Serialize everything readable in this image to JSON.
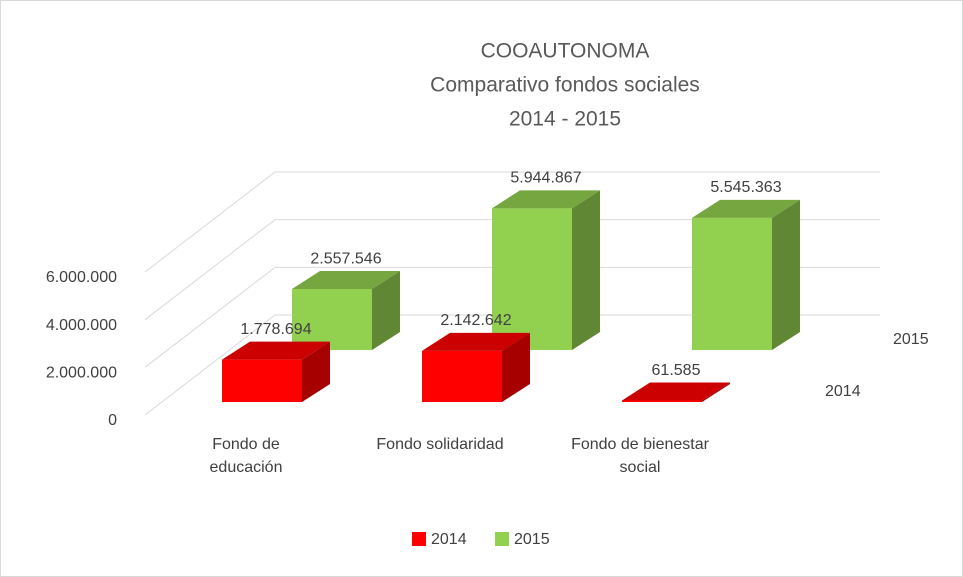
{
  "chart_data": {
    "type": "bar3d",
    "title": [
      "COOAUTONOMA",
      "Comparativo fondos sociales",
      "2014 - 2015"
    ],
    "categories": [
      "Fondo de educación",
      "Fondo solidaridad",
      "Fondo de bienestar social"
    ],
    "series": [
      {
        "name": "2014",
        "color": "#ff0000",
        "values": [
          1778694,
          2142642,
          61585
        ],
        "value_labels": [
          "1.778.694",
          "2.142.642",
          "61.585"
        ]
      },
      {
        "name": "2015",
        "color": "#92d050",
        "values": [
          2557546,
          5944867,
          5545363
        ],
        "value_labels": [
          "2.557.546",
          "5.944.867",
          "5.545.363"
        ]
      }
    ],
    "ylim": [
      0,
      6000000
    ],
    "yticks": [
      0,
      {
        "value": 2000000,
        "label": "2.000.000"
      },
      {
        "value": 4000000,
        "label": "4.000.000"
      },
      {
        "value": 6000000,
        "label": "6.000.000"
      }
    ],
    "grid": true,
    "legend": "bottom"
  }
}
